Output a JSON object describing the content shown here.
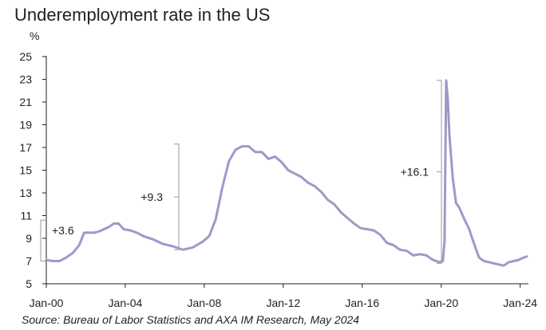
{
  "title": "Underemployment rate in the US",
  "source": "Source: Bureau of Labor Statistics and AXA IM Research, May 2024",
  "colors": {
    "line": "#9b9bc8",
    "bracket": "#999999",
    "axis": "#222222",
    "text": "#222222"
  },
  "chart_data": {
    "type": "line",
    "title": "Underemployment rate in the US",
    "ylabel": "%",
    "xlabel": "",
    "ylim": [
      5,
      25
    ],
    "yticks": [
      5,
      7,
      9,
      11,
      13,
      15,
      17,
      19,
      21,
      23,
      25
    ],
    "xlim": [
      "2000-01",
      "2024-06"
    ],
    "xticks": [
      "Jan-00",
      "Jan-04",
      "Jan-08",
      "Jan-12",
      "Jan-16",
      "Jan-20",
      "Jan-24"
    ],
    "grid": false,
    "legend": "none",
    "series": [
      {
        "values": [
          [
            "2000-01",
            7.1
          ],
          [
            "2000-05",
            7.0
          ],
          [
            "2000-09",
            7.0
          ],
          [
            "2001-01",
            7.3
          ],
          [
            "2001-05",
            7.7
          ],
          [
            "2001-09",
            8.4
          ],
          [
            "2001-12",
            9.5
          ],
          [
            "2002-03",
            9.5
          ],
          [
            "2002-06",
            9.5
          ],
          [
            "2002-09",
            9.6
          ],
          [
            "2002-12",
            9.8
          ],
          [
            "2003-03",
            10.0
          ],
          [
            "2003-06",
            10.3
          ],
          [
            "2003-09",
            10.3
          ],
          [
            "2003-12",
            9.8
          ],
          [
            "2004-04",
            9.7
          ],
          [
            "2004-08",
            9.5
          ],
          [
            "2004-12",
            9.2
          ],
          [
            "2005-06",
            8.9
          ],
          [
            "2005-12",
            8.5
          ],
          [
            "2006-06",
            8.3
          ],
          [
            "2006-12",
            8.0
          ],
          [
            "2007-06",
            8.2
          ],
          [
            "2007-12",
            8.7
          ],
          [
            "2008-04",
            9.2
          ],
          [
            "2008-08",
            10.7
          ],
          [
            "2008-12",
            13.5
          ],
          [
            "2009-04",
            15.8
          ],
          [
            "2009-08",
            16.8
          ],
          [
            "2009-12",
            17.1
          ],
          [
            "2010-04",
            17.1
          ],
          [
            "2010-08",
            16.6
          ],
          [
            "2010-12",
            16.6
          ],
          [
            "2011-04",
            16.0
          ],
          [
            "2011-08",
            16.2
          ],
          [
            "2011-12",
            15.7
          ],
          [
            "2012-04",
            15.0
          ],
          [
            "2012-08",
            14.7
          ],
          [
            "2012-12",
            14.4
          ],
          [
            "2013-04",
            13.9
          ],
          [
            "2013-08",
            13.6
          ],
          [
            "2013-12",
            13.1
          ],
          [
            "2014-04",
            12.4
          ],
          [
            "2014-08",
            12.0
          ],
          [
            "2014-12",
            11.3
          ],
          [
            "2015-04",
            10.8
          ],
          [
            "2015-08",
            10.3
          ],
          [
            "2015-12",
            9.9
          ],
          [
            "2016-04",
            9.8
          ],
          [
            "2016-08",
            9.7
          ],
          [
            "2016-12",
            9.3
          ],
          [
            "2017-04",
            8.6
          ],
          [
            "2017-08",
            8.4
          ],
          [
            "2017-12",
            8.0
          ],
          [
            "2018-04",
            7.9
          ],
          [
            "2018-08",
            7.5
          ],
          [
            "2018-12",
            7.6
          ],
          [
            "2019-04",
            7.5
          ],
          [
            "2019-08",
            7.1
          ],
          [
            "2019-12",
            6.9
          ],
          [
            "2020-02",
            7.0
          ],
          [
            "2020-03",
            8.7
          ],
          [
            "2020-04",
            22.9
          ],
          [
            "2020-05",
            21.2
          ],
          [
            "2020-06",
            18.0
          ],
          [
            "2020-08",
            14.3
          ],
          [
            "2020-10",
            12.1
          ],
          [
            "2020-12",
            11.7
          ],
          [
            "2021-03",
            10.7
          ],
          [
            "2021-06",
            9.8
          ],
          [
            "2021-09",
            8.5
          ],
          [
            "2021-12",
            7.3
          ],
          [
            "2022-03",
            7.0
          ],
          [
            "2022-06",
            6.9
          ],
          [
            "2022-09",
            6.8
          ],
          [
            "2022-12",
            6.7
          ],
          [
            "2023-03",
            6.6
          ],
          [
            "2023-06",
            6.9
          ],
          [
            "2023-09",
            7.0
          ],
          [
            "2023-12",
            7.1
          ],
          [
            "2024-03",
            7.3
          ],
          [
            "2024-05",
            7.4
          ]
        ]
      }
    ],
    "annotations": [
      {
        "label": "+3.6",
        "from": 7.0,
        "to": 10.6
      },
      {
        "label": "+9.3",
        "from": 8.0,
        "to": 17.3
      },
      {
        "label": "+16.1",
        "from": 6.8,
        "to": 22.9
      }
    ]
  }
}
